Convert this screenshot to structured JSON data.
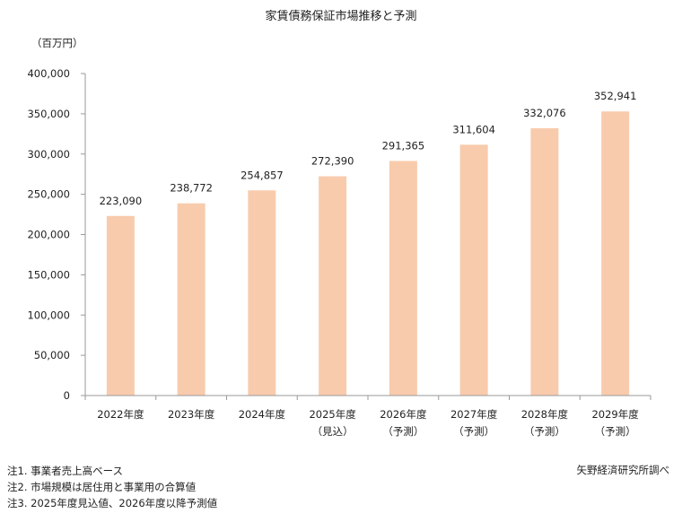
{
  "chart_data": {
    "type": "bar",
    "title": "家賃債務保証市場推移と予測",
    "unit_label": "（百万円）",
    "categories": [
      "2022年度",
      "2023年度",
      "2024年度",
      "2025年度",
      "2026年度",
      "2027年度",
      "2028年度",
      "2029年度"
    ],
    "sublabels": [
      "",
      "",
      "",
      "（見込）",
      "（予測）",
      "（予測）",
      "（予測）",
      "（予測）"
    ],
    "values": [
      223090,
      238772,
      254857,
      272390,
      291365,
      311604,
      332076,
      352941
    ],
    "value_labels": [
      "223,090",
      "238,772",
      "254,857",
      "272,390",
      "291,365",
      "311,604",
      "332,076",
      "352,941"
    ],
    "ylim": [
      0,
      400000
    ],
    "yticks": [
      0,
      50000,
      100000,
      150000,
      200000,
      250000,
      300000,
      350000,
      400000
    ],
    "ytick_labels": [
      "0",
      "50,000",
      "100,000",
      "150,000",
      "200,000",
      "250,000",
      "300,000",
      "350,000",
      "400,000"
    ],
    "grid": false,
    "bar_color": "#F8CBAD"
  },
  "notes": [
    "注1. 事業者売上高ベース",
    "注2. 市場規模は居住用と事業用の合算値",
    "注3. 2025年度見込値、2026年度以降予測値"
  ],
  "source": "矢野経済研究所調べ"
}
